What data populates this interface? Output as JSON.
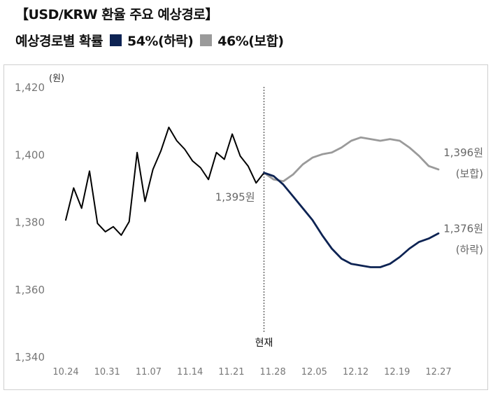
{
  "header": {
    "title": "【USD/KRW 환율 주요 예상경로】",
    "prob_label": "예상경로별 확률",
    "legend": [
      {
        "text": "54%(하락)",
        "color": "#0d2353"
      },
      {
        "text": "46%(보합)",
        "color": "#9a9a9a"
      }
    ]
  },
  "chart_data": {
    "type": "line",
    "y_unit": "(원)",
    "ylim": [
      1340,
      1420
    ],
    "yticks": [
      "1,340",
      "1,360",
      "1,380",
      "1,400",
      "1,420"
    ],
    "ytick_values": [
      1340,
      1360,
      1380,
      1400,
      1420
    ],
    "xticks": [
      "10.24",
      "10.31",
      "11.07",
      "11.14",
      "11.21",
      "11.28",
      "12.05",
      "12.12",
      "12.19",
      "12.27"
    ],
    "grid": false,
    "x_index_range": [
      0,
      47
    ],
    "series": [
      {
        "name": "history",
        "color": "#000000",
        "start_index": 0,
        "values": [
          1380.5,
          1390,
          1384,
          1395,
          1379.5,
          1377,
          1378.5,
          1376,
          1380,
          1400.5,
          1386,
          1395.5,
          1401,
          1408,
          1404,
          1401.5,
          1398,
          1396,
          1392.5,
          1400.5,
          1398.5,
          1406,
          1399.5,
          1396.5,
          1391.5,
          1394.5
        ]
      },
      {
        "name": "보합",
        "color": "#9a9a9a",
        "start_index": 27,
        "values": [
          1394.5,
          1392.5,
          1392,
          1394,
          1397,
          1399,
          1400,
          1400.5,
          1402,
          1404,
          1405,
          1404.5,
          1404,
          1404.5,
          1404,
          1402,
          1399.5,
          1396.5,
          1395.5
        ],
        "start_offset": 25
      },
      {
        "name": "하락",
        "color": "#0d2353",
        "start_offset": 25,
        "values": [
          1394.5,
          1393.5,
          1391,
          1387.5,
          1384,
          1380.5,
          1376,
          1372,
          1369,
          1367.5,
          1367,
          1366.5,
          1366.5,
          1367.5,
          1369.5,
          1372,
          1374,
          1375,
          1376.5
        ]
      }
    ],
    "current_index": 25,
    "current_label": "현재",
    "annotations": [
      {
        "text": "1,395원",
        "anchor": "current"
      },
      {
        "text": "1,396원",
        "anchor": "보합-end"
      },
      {
        "text": "(보합)",
        "anchor": "보합-end"
      },
      {
        "text": "1,376원",
        "anchor": "하락-end"
      },
      {
        "text": "(하락)",
        "anchor": "하락-end"
      }
    ]
  }
}
